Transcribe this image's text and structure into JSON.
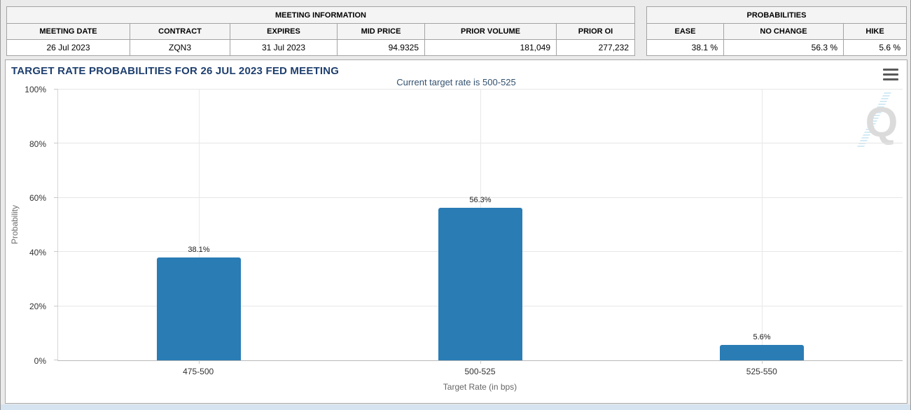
{
  "tables": {
    "meeting": {
      "title": "MEETING INFORMATION",
      "columns": [
        "MEETING DATE",
        "CONTRACT",
        "EXPIRES",
        "MID PRICE",
        "PRIOR VOLUME",
        "PRIOR OI"
      ],
      "values": [
        "26 Jul 2023",
        "ZQN3",
        "31 Jul 2023",
        "94.9325",
        "181,049",
        "277,232"
      ]
    },
    "probabilities": {
      "title": "PROBABILITIES",
      "columns": [
        "EASE",
        "NO CHANGE",
        "HIKE"
      ],
      "values": [
        "38.1 %",
        "56.3 %",
        "5.6 %"
      ]
    }
  },
  "chart": {
    "menu_icon": "context-menu-hamburger",
    "watermark_letter": "Q"
  },
  "chart_data": {
    "type": "bar",
    "title": "TARGET RATE PROBABILITIES FOR 26 JUL 2023 FED MEETING",
    "subtitle": "Current target rate is 500-525",
    "categories": [
      "475-500",
      "500-525",
      "525-550"
    ],
    "values": [
      38.1,
      56.3,
      5.6
    ],
    "data_labels": [
      "38.1%",
      "56.3%",
      "5.6%"
    ],
    "xlabel": "Target Rate (in bps)",
    "ylabel": "Probability",
    "ylim": [
      0,
      100
    ],
    "ytick_values": [
      0,
      20,
      40,
      60,
      80,
      100
    ],
    "ytick_labels": [
      "0%",
      "20%",
      "40%",
      "60%",
      "80%",
      "100%"
    ],
    "grid": true,
    "legend": false,
    "bar_color": "#2a7cb5",
    "title_color": "#1e3f6e",
    "subtitle_color": "#33516f",
    "watermark_gray": "#d8d8d8",
    "watermark_blue": "#cfe8f5"
  }
}
